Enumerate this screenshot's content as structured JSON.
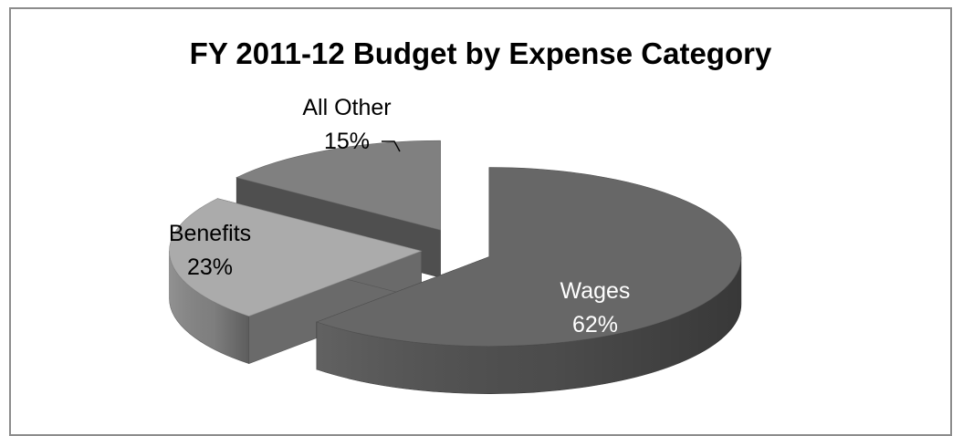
{
  "chart_data": {
    "type": "pie",
    "title": "FY 2011-12 Budget by Expense Category",
    "categories": [
      "Wages",
      "Benefits",
      "All Other"
    ],
    "values": [
      62,
      23,
      15
    ],
    "value_labels": [
      "62%",
      "23%",
      "15%"
    ],
    "exploded": true,
    "three_d": true,
    "legend": "none",
    "colors": {
      "Wages": "#676767",
      "Benefits": "#ababab",
      "All Other": "#808080"
    },
    "label_colors": {
      "Wages": "#ffffff",
      "Benefits": "#000000",
      "All Other": "#000000"
    }
  }
}
